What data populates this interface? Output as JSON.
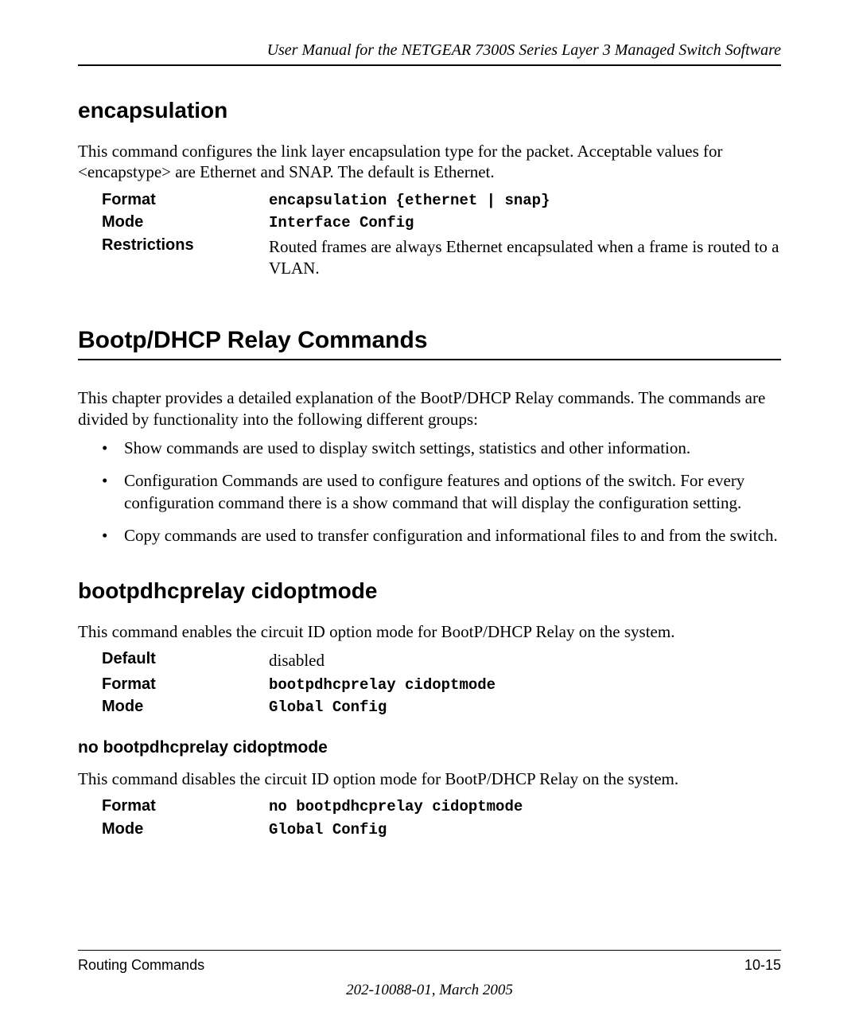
{
  "header": {
    "title": "User Manual for the NETGEAR 7300S Series Layer 3 Managed Switch Software"
  },
  "section1": {
    "heading": "encapsulation",
    "para": "This command configures the link layer encapsulation type for the packet. Acceptable values for <encapstype> are Ethernet and SNAP. The default is Ethernet.",
    "rows": {
      "format_label": "Format",
      "format_value": "encapsulation {ethernet | snap}",
      "mode_label": "Mode",
      "mode_value": "Interface Config",
      "restrictions_label": "Restrictions",
      "restrictions_value": "Routed frames are always Ethernet encapsulated when a frame is routed to a VLAN."
    }
  },
  "section2": {
    "heading": "Bootp/DHCP Relay Commands",
    "para": "This chapter provides a detailed explanation of the BootP/DHCP Relay commands. The commands are divided by functionality into the following different groups:",
    "bullets": [
      "Show commands are used to display switch settings, statistics and other information.",
      "Configuration Commands are used to configure features and options of the switch. For every configuration command there is a show command that will display the configuration setting.",
      "Copy commands are used to transfer configuration and informational files to and from the switch."
    ]
  },
  "section3": {
    "heading": "bootpdhcprelay cidoptmode",
    "para": "This command enables the circuit ID option mode for BootP/DHCP Relay on the system.",
    "rows": {
      "default_label": "Default",
      "default_value": "disabled",
      "format_label": "Format",
      "format_value": "bootpdhcprelay cidoptmode",
      "mode_label": "Mode",
      "mode_value": "Global Config"
    }
  },
  "section4": {
    "heading": "no bootpdhcprelay cidoptmode",
    "para": "This command disables the circuit ID option mode for BootP/DHCP Relay on the system.",
    "rows": {
      "format_label": "Format",
      "format_value": "no bootpdhcprelay cidoptmode",
      "mode_label": "Mode",
      "mode_value": "Global Config"
    }
  },
  "footer": {
    "left": "Routing Commands",
    "right": "10-15",
    "center": "202-10088-01, March 2005"
  }
}
